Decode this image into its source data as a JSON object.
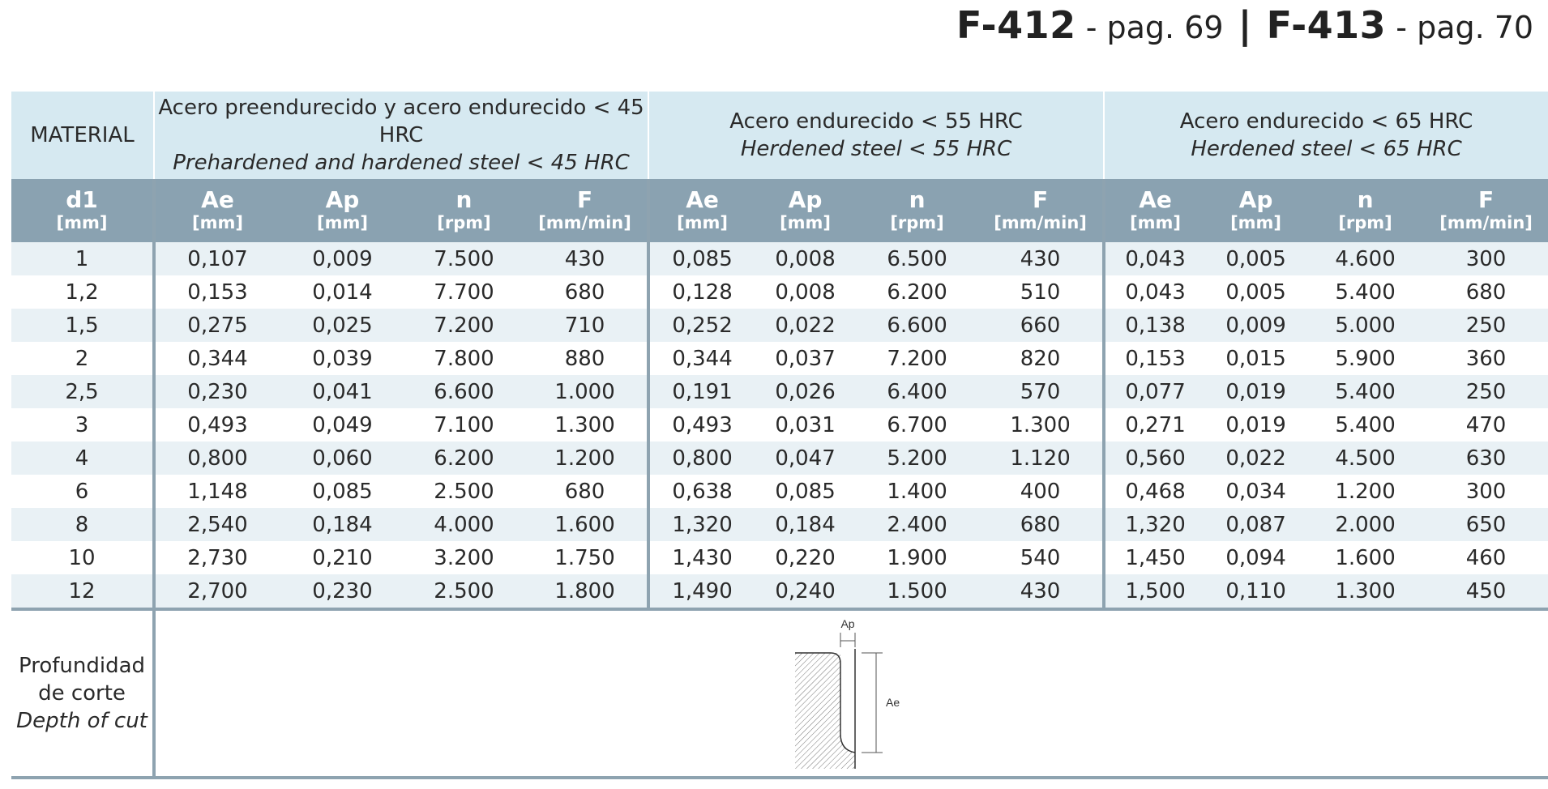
{
  "header": {
    "ref1_code": "F-412",
    "ref1_pag": "- pag. 69",
    "separator": "|",
    "ref2_code": "F-413",
    "ref2_pag": "- pag. 70"
  },
  "materials": {
    "label": "MATERIAL",
    "groups": [
      {
        "es": "Acero preendurecido y acero endurecido < 45 HRC",
        "en": "Prehardened and hardened steel < 45 HRC"
      },
      {
        "es": "Acero endurecido < 55 HRC",
        "en": "Herdened steel < 55 HRC"
      },
      {
        "es": "Acero endurecido < 65 HRC",
        "en": "Herdened steel < 65 HRC"
      }
    ]
  },
  "columns": {
    "d1": {
      "name": "d1",
      "unit": "[mm]"
    },
    "params": [
      {
        "name": "Ae",
        "unit": "[mm]"
      },
      {
        "name": "Ap",
        "unit": "[mm]"
      },
      {
        "name": "n",
        "unit": "[rpm]"
      },
      {
        "name": "F",
        "unit": "[mm/min]"
      }
    ]
  },
  "rows": [
    [
      "1",
      "0,107",
      "0,009",
      "7.500",
      "430",
      "0,085",
      "0,008",
      "6.500",
      "430",
      "0,043",
      "0,005",
      "4.600",
      "300"
    ],
    [
      "1,2",
      "0,153",
      "0,014",
      "7.700",
      "680",
      "0,128",
      "0,008",
      "6.200",
      "510",
      "0,043",
      "0,005",
      "5.400",
      "680"
    ],
    [
      "1,5",
      "0,275",
      "0,025",
      "7.200",
      "710",
      "0,252",
      "0,022",
      "6.600",
      "660",
      "0,138",
      "0,009",
      "5.000",
      "250"
    ],
    [
      "2",
      "0,344",
      "0,039",
      "7.800",
      "880",
      "0,344",
      "0,037",
      "7.200",
      "820",
      "0,153",
      "0,015",
      "5.900",
      "360"
    ],
    [
      "2,5",
      "0,230",
      "0,041",
      "6.600",
      "1.000",
      "0,191",
      "0,026",
      "6.400",
      "570",
      "0,077",
      "0,019",
      "5.400",
      "250"
    ],
    [
      "3",
      "0,493",
      "0,049",
      "7.100",
      "1.300",
      "0,493",
      "0,031",
      "6.700",
      "1.300",
      "0,271",
      "0,019",
      "5.400",
      "470"
    ],
    [
      "4",
      "0,800",
      "0,060",
      "6.200",
      "1.200",
      "0,800",
      "0,047",
      "5.200",
      "1.120",
      "0,560",
      "0,022",
      "4.500",
      "630"
    ],
    [
      "6",
      "1,148",
      "0,085",
      "2.500",
      "680",
      "0,638",
      "0,085",
      "1.400",
      "400",
      "0,468",
      "0,034",
      "1.200",
      "300"
    ],
    [
      "8",
      "2,540",
      "0,184",
      "4.000",
      "1.600",
      "1,320",
      "0,184",
      "2.400",
      "680",
      "1,320",
      "0,087",
      "2.000",
      "650"
    ],
    [
      "10",
      "2,730",
      "0,210",
      "3.200",
      "1.750",
      "1,430",
      "0,220",
      "1.900",
      "540",
      "1,450",
      "0,094",
      "1.600",
      "460"
    ],
    [
      "12",
      "2,700",
      "0,230",
      "2.500",
      "1.800",
      "1,490",
      "0,240",
      "1.500",
      "430",
      "1,500",
      "0,110",
      "1.300",
      "450"
    ]
  ],
  "depth": {
    "es_line1": "Profundidad",
    "es_line2": "de corte",
    "en": "Depth of cut",
    "diagram_ap": "Ap",
    "diagram_ae": "Ae"
  }
}
